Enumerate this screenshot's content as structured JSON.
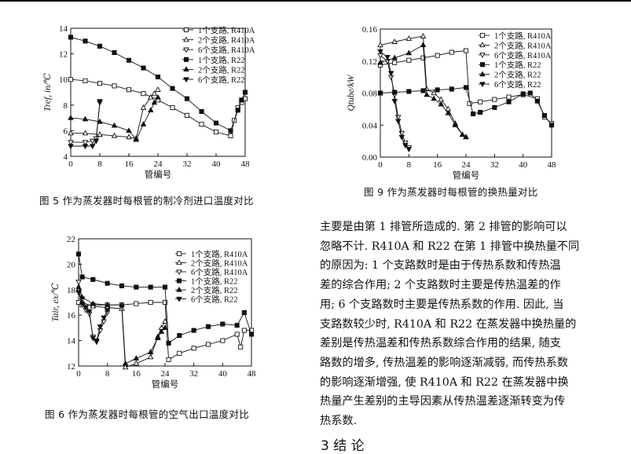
{
  "legend": [
    "1个支路, R410A",
    "2个支路, R410A",
    "6个支路, R410A",
    "1个支路, R22",
    "2个支路, R22",
    "6个支路, R22"
  ],
  "fig5": {
    "caption": "图 5   作为蒸发器时每根管的制冷剂进口温度对比",
    "xlabel": "管编号",
    "ylabel": "Tref, in/℃",
    "chart_data": {
      "type": "line",
      "xlabel": "管编号",
      "ylabel": "Tref, in/℃",
      "xlim": [
        0,
        48
      ],
      "ylim": [
        4,
        14
      ],
      "xticks": [
        0,
        8,
        16,
        24,
        32,
        40,
        48
      ],
      "yticks": [
        4,
        6,
        8,
        10,
        12,
        14
      ],
      "series": [
        {
          "name": "1个支路, R410A",
          "marker": "open-square",
          "x": [
            0,
            4,
            8,
            12,
            16,
            20,
            24,
            28,
            32,
            36,
            40,
            44,
            45,
            46,
            47,
            48
          ],
          "y": [
            10,
            9.9,
            9.7,
            9.5,
            9.2,
            8.9,
            8.4,
            7.8,
            7.2,
            6.5,
            5.9,
            5.6,
            6.8,
            7.8,
            8.2,
            8.5
          ]
        },
        {
          "name": "2个支路, R410A",
          "marker": "open-triangle",
          "x": [
            0,
            4,
            8,
            12,
            16,
            18,
            20,
            22,
            23,
            24
          ],
          "y": [
            5.8,
            5.8,
            5.7,
            5.6,
            5.5,
            5.4,
            7.8,
            8.6,
            8.9,
            9.2
          ]
        },
        {
          "name": "6个支路, R410A",
          "marker": "open-triangle-down",
          "x": [
            0,
            4,
            6,
            7,
            8
          ],
          "y": [
            5.1,
            5.1,
            5.2,
            5.4,
            8.2
          ]
        },
        {
          "name": "1个支路, R22",
          "marker": "filled-square",
          "x": [
            0,
            4,
            8,
            12,
            16,
            20,
            24,
            28,
            32,
            36,
            40,
            44,
            46,
            47,
            48
          ],
          "y": [
            13.3,
            13,
            12.6,
            12.1,
            11.5,
            10.9,
            10.2,
            9.3,
            8.5,
            7.5,
            6.6,
            6,
            7.6,
            8.4,
            9
          ]
        },
        {
          "name": "2个支路, R22",
          "marker": "filled-triangle",
          "x": [
            0,
            4,
            8,
            12,
            16,
            18,
            20,
            22,
            23,
            24
          ],
          "y": [
            7,
            6.9,
            6.7,
            6.4,
            6.0,
            5.3,
            6.5,
            7.6,
            8.2,
            8.6
          ]
        },
        {
          "name": "6个支路, R22",
          "marker": "filled-triangle-down",
          "x": [
            0,
            4,
            6,
            7,
            8
          ],
          "y": [
            4.8,
            4.8,
            4.8,
            5.2,
            8.3
          ]
        }
      ]
    }
  },
  "fig9": {
    "caption": "图 9   作为蒸发器时每根管的换热量对比",
    "xlabel": "管编号",
    "ylabel": "Qtube/kW",
    "chart_data": {
      "type": "line",
      "xlabel": "管编号",
      "ylabel": "Qtube/kW",
      "xlim": [
        0,
        48
      ],
      "ylim": [
        0,
        0.16
      ],
      "xticks": [
        0,
        8,
        16,
        24,
        32,
        40,
        48
      ],
      "yticks": [
        0.0,
        0.04,
        0.08,
        0.12,
        0.16
      ],
      "series": [
        {
          "name": "1个支路, R410A",
          "marker": "open-square",
          "x": [
            0,
            4,
            8,
            12,
            16,
            20,
            24,
            25,
            28,
            32,
            36,
            40,
            44,
            46,
            48
          ],
          "y": [
            0.115,
            0.118,
            0.121,
            0.124,
            0.127,
            0.131,
            0.133,
            0.067,
            0.069,
            0.072,
            0.075,
            0.078,
            0.073,
            0.05,
            0.042
          ]
        },
        {
          "name": "2个支路, R410A",
          "marker": "open-triangle",
          "x": [
            0,
            4,
            8,
            12,
            13,
            15,
            17,
            19,
            21,
            23,
            24
          ],
          "y": [
            0.14,
            0.144,
            0.148,
            0.151,
            0.085,
            0.08,
            0.072,
            0.06,
            0.042,
            0.028,
            0.025
          ]
        },
        {
          "name": "6个支路, R410A",
          "marker": "open-triangle-down",
          "x": [
            0,
            2,
            3,
            4,
            5,
            6,
            7,
            8
          ],
          "y": [
            0.127,
            0.12,
            0.1,
            0.078,
            0.05,
            0.03,
            0.018,
            0.012
          ]
        },
        {
          "name": "1个支路, R22",
          "marker": "filled-square",
          "x": [
            0,
            4,
            8,
            12,
            16,
            20,
            24,
            26,
            28,
            32,
            36,
            40,
            42,
            44,
            46,
            48
          ],
          "y": [
            0.08,
            0.081,
            0.082,
            0.083,
            0.084,
            0.085,
            0.087,
            0.054,
            0.056,
            0.062,
            0.069,
            0.079,
            0.08,
            0.07,
            0.052,
            0.04
          ]
        },
        {
          "name": "2个支路, R22",
          "marker": "filled-triangle",
          "x": [
            0,
            4,
            8,
            12,
            13,
            15,
            17,
            19,
            21,
            23,
            24
          ],
          "y": [
            0.118,
            0.124,
            0.13,
            0.14,
            0.078,
            0.073,
            0.066,
            0.055,
            0.04,
            0.028,
            0.025
          ]
        },
        {
          "name": "6个支路, R22",
          "marker": "filled-triangle-down",
          "x": [
            0,
            2,
            3,
            4,
            5,
            6,
            7,
            8
          ],
          "y": [
            0.132,
            0.125,
            0.105,
            0.07,
            0.045,
            0.025,
            0.015,
            0.01
          ]
        }
      ]
    }
  },
  "fig6": {
    "caption": "图 6   作为蒸发器时每根管的空气出口温度对比",
    "xlabel": "管编号",
    "ylabel": "Tair, ex/℃",
    "chart_data": {
      "type": "line",
      "xlabel": "管编号",
      "ylabel": "Tair, ex/℃",
      "xlim": [
        0,
        48
      ],
      "ylim": [
        12,
        22
      ],
      "xticks": [
        0,
        8,
        16,
        24,
        32,
        40,
        48
      ],
      "yticks": [
        12,
        14,
        16,
        18,
        20,
        22
      ],
      "series": [
        {
          "name": "1个支路, R410A",
          "marker": "open-square",
          "x": [
            0,
            1,
            4,
            8,
            12,
            16,
            20,
            24,
            25,
            28,
            32,
            36,
            40,
            44,
            45,
            46,
            48
          ],
          "y": [
            17,
            16.8,
            16.8,
            16.8,
            16.8,
            16.9,
            17,
            17,
            12.5,
            13,
            13.4,
            13.7,
            14,
            14.5,
            13.5,
            14.8,
            14.8
          ]
        },
        {
          "name": "2个支路, R410A",
          "marker": "open-triangle",
          "x": [
            0,
            1,
            4,
            8,
            12,
            13,
            16,
            20,
            22,
            23,
            24
          ],
          "y": [
            18,
            17,
            16.7,
            16.6,
            16.5,
            11.9,
            12.2,
            12.7,
            14.3,
            15,
            15.5
          ]
        },
        {
          "name": "6个支路, R410A",
          "marker": "open-triangle-down",
          "x": [
            0,
            1,
            2,
            3,
            4,
            5,
            6,
            7,
            8
          ],
          "y": [
            18.6,
            17.3,
            16.4,
            16.1,
            14.3,
            13.9,
            14.8,
            15.5,
            16.2
          ]
        },
        {
          "name": "1个支路, R22",
          "marker": "filled-square",
          "x": [
            0,
            1,
            4,
            8,
            12,
            16,
            20,
            24,
            25,
            28,
            32,
            36,
            40,
            44,
            46,
            48
          ],
          "y": [
            20.8,
            19,
            18.8,
            18.5,
            18.3,
            18.2,
            18.2,
            18.2,
            13.8,
            14.4,
            14.8,
            15.1,
            15.3,
            15.2,
            16.2,
            14.5
          ]
        },
        {
          "name": "2个支路, R22",
          "marker": "filled-triangle",
          "x": [
            0,
            1,
            4,
            8,
            12,
            13,
            16,
            20,
            22,
            23,
            24
          ],
          "y": [
            18.2,
            17.4,
            16.9,
            16.8,
            16.8,
            12.2,
            12.6,
            13.1,
            14.2,
            14.7,
            15
          ]
        },
        {
          "name": "6个支路, R22",
          "marker": "filled-triangle-down",
          "x": [
            0,
            1,
            2,
            3,
            4,
            5,
            6,
            7,
            8
          ],
          "y": [
            17.8,
            16.9,
            16.6,
            16.3,
            14.2,
            14,
            15.1,
            15.8,
            16.4
          ]
        }
      ]
    }
  },
  "paragraph": [
    "主要是由第 1 排管所造成的. 第 2 排管的影响可以",
    "忽略不计. R410A 和 R22 在第 1 排管中换热量不同",
    "的原因为: 1 个支路数时是由于传热系数和传热温",
    "差的综合作用; 2 个支路数时主要是传热温差的作",
    "用; 6 个支路数时主要是传热系数的作用. 因此, 当",
    "支路数较少时, R410A 和 R22 在蒸发器中换热量的",
    "差别是传热温差和传热系数综合作用的结果, 随支",
    "路数的增多, 传热温差的影响逐渐减弱, 而传热系数",
    "的影响逐渐增强, 使 R410A 和 R22 在蒸发器中换",
    "热量产生差别的主导因素从传热温差逐渐转变为传",
    "热系数."
  ],
  "section_heading": "3   结   论"
}
